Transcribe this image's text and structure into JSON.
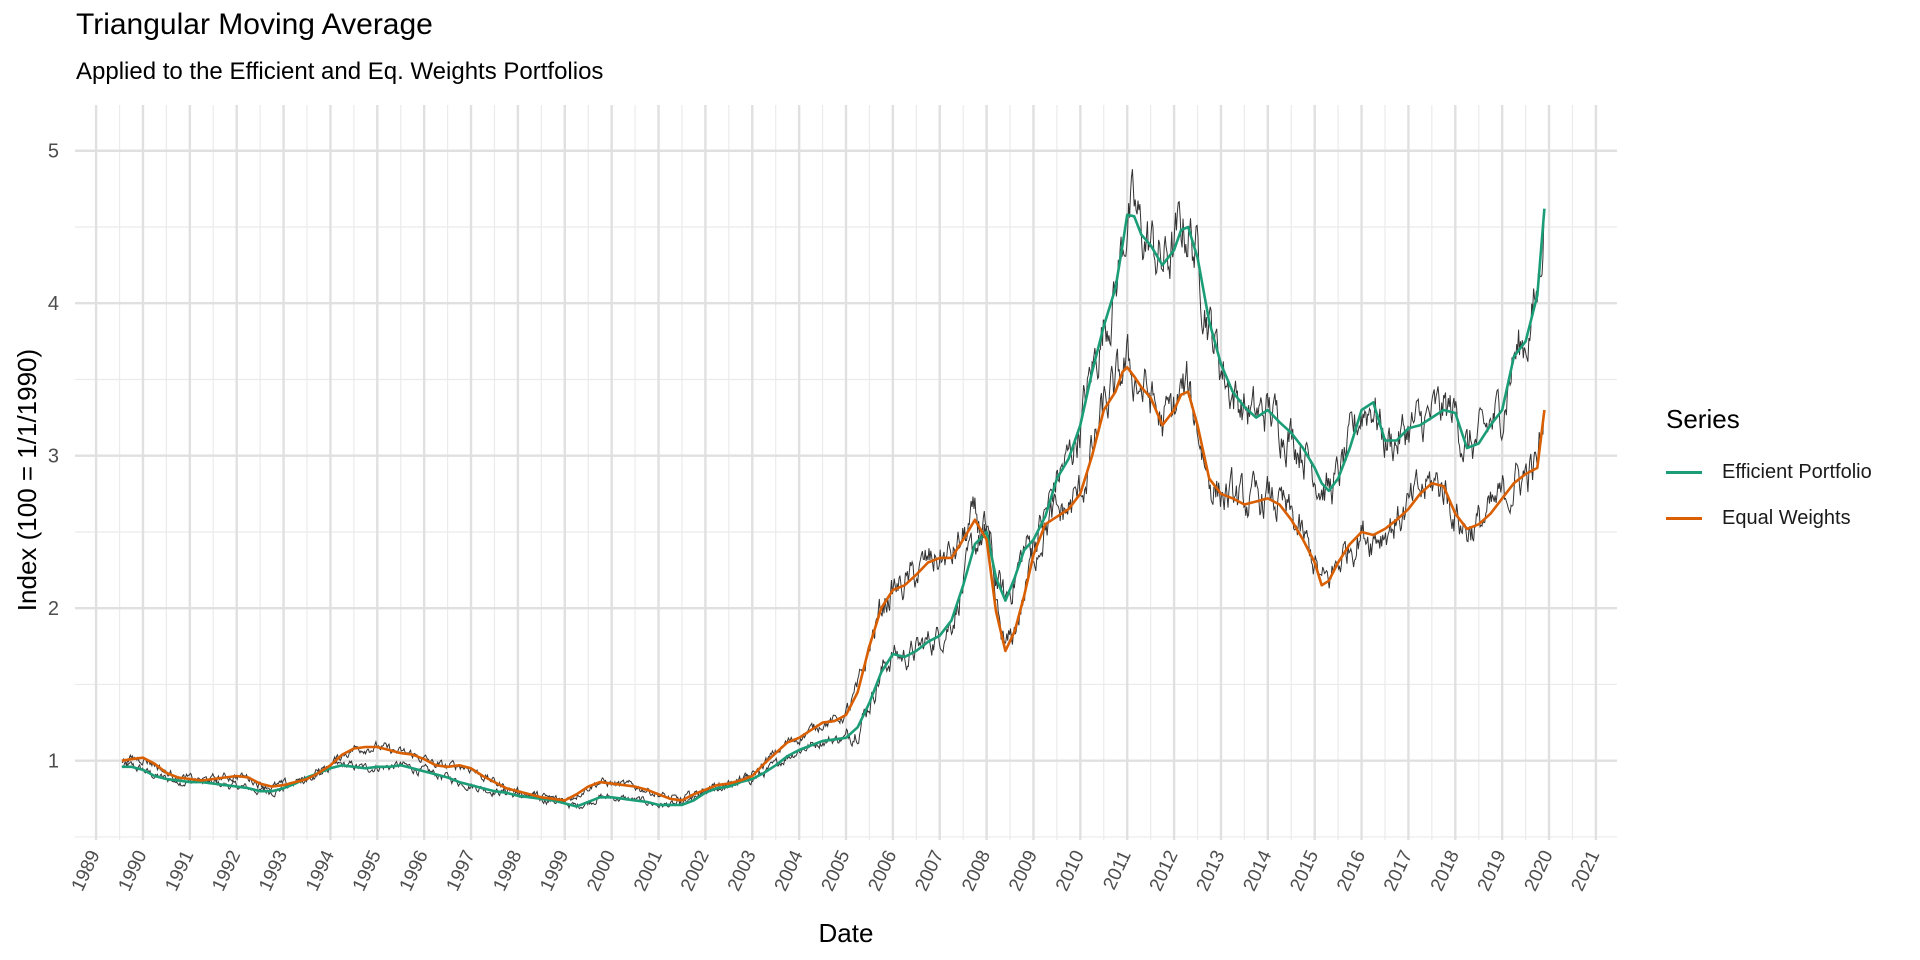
{
  "chart_data": {
    "type": "line",
    "title": "Triangular Moving Average",
    "subtitle": "Applied to the Efficient and Eq. Weights Portfolios",
    "xlabel": "Date",
    "ylabel": "Index (100 = 1/1/1990)",
    "xlim": [
      1988.55,
      2021.45
    ],
    "ylim": [
      0.48,
      5.3
    ],
    "y_ticks": [
      1,
      2,
      3,
      4,
      5
    ],
    "y_tick_labels": [
      "1",
      "2",
      "3",
      "4",
      "5"
    ],
    "x_ticks": [
      1989,
      1990,
      1991,
      1992,
      1993,
      1994,
      1995,
      1996,
      1997,
      1998,
      1999,
      2000,
      2001,
      2002,
      2003,
      2004,
      2005,
      2006,
      2007,
      2008,
      2009,
      2010,
      2011,
      2012,
      2013,
      2014,
      2015,
      2016,
      2017,
      2018,
      2019,
      2020,
      2021
    ],
    "x_tick_labels": [
      "1989",
      "1990",
      "1991",
      "1992",
      "1993",
      "1994",
      "1995",
      "1996",
      "1997",
      "1998",
      "1999",
      "2000",
      "2001",
      "2002",
      "2003",
      "2004",
      "2005",
      "2006",
      "2007",
      "2008",
      "2009",
      "2010",
      "2011",
      "2012",
      "2013",
      "2014",
      "2015",
      "2016",
      "2017",
      "2018",
      "2019",
      "2020",
      "2021"
    ],
    "grid": true,
    "legend": {
      "title": "Series",
      "position": "right",
      "items": [
        {
          "label": "Efficient Portfolio",
          "color": "#1b9e77"
        },
        {
          "label": "Equal Weights",
          "color": "#d95f02"
        }
      ]
    },
    "raw_line_color": "#333333",
    "series": [
      {
        "name": "Efficient Portfolio",
        "color": "#1b9e77",
        "x": [
          1989.55,
          1989.75,
          1990.0,
          1990.25,
          1990.5,
          1990.75,
          1991.0,
          1991.25,
          1991.5,
          1991.75,
          1992.0,
          1992.25,
          1992.5,
          1992.75,
          1993.0,
          1993.25,
          1993.5,
          1993.75,
          1994.0,
          1994.25,
          1994.5,
          1994.75,
          1995.0,
          1995.25,
          1995.5,
          1995.75,
          1996.0,
          1996.25,
          1996.5,
          1996.75,
          1997.0,
          1997.25,
          1997.5,
          1997.75,
          1998.0,
          1998.25,
          1998.5,
          1998.75,
          1999.0,
          1999.25,
          1999.5,
          1999.75,
          2000.0,
          2000.25,
          2000.5,
          2000.75,
          2001.0,
          2001.25,
          2001.5,
          2001.75,
          2002.0,
          2002.25,
          2002.5,
          2002.75,
          2003.0,
          2003.25,
          2003.5,
          2003.75,
          2004.0,
          2004.25,
          2004.5,
          2004.75,
          2005.0,
          2005.25,
          2005.5,
          2005.75,
          2006.0,
          2006.25,
          2006.5,
          2006.75,
          2007.0,
          2007.25,
          2007.5,
          2007.75,
          2008.0,
          2008.2,
          2008.4,
          2008.6,
          2008.8,
          2009.0,
          2009.25,
          2009.5,
          2009.75,
          2010.0,
          2010.25,
          2010.5,
          2010.75,
          2010.9,
          2011.0,
          2011.15,
          2011.3,
          2011.5,
          2011.75,
          2012.0,
          2012.15,
          2012.3,
          2012.5,
          2012.75,
          2013.0,
          2013.25,
          2013.5,
          2013.75,
          2014.0,
          2014.25,
          2014.5,
          2014.75,
          2015.0,
          2015.15,
          2015.3,
          2015.5,
          2015.75,
          2016.0,
          2016.25,
          2016.5,
          2016.75,
          2017.0,
          2017.25,
          2017.5,
          2017.75,
          2018.0,
          2018.25,
          2018.5,
          2018.75,
          2019.0,
          2019.25,
          2019.5,
          2019.75,
          2019.9
        ],
        "values": [
          0.96,
          0.96,
          0.94,
          0.9,
          0.88,
          0.87,
          0.86,
          0.86,
          0.85,
          0.84,
          0.83,
          0.82,
          0.8,
          0.8,
          0.82,
          0.85,
          0.89,
          0.92,
          0.95,
          0.97,
          0.96,
          0.95,
          0.96,
          0.96,
          0.97,
          0.95,
          0.93,
          0.91,
          0.89,
          0.86,
          0.84,
          0.82,
          0.8,
          0.79,
          0.77,
          0.76,
          0.75,
          0.74,
          0.72,
          0.7,
          0.73,
          0.76,
          0.76,
          0.75,
          0.74,
          0.73,
          0.71,
          0.71,
          0.71,
          0.74,
          0.79,
          0.82,
          0.83,
          0.86,
          0.88,
          0.92,
          0.97,
          1.03,
          1.07,
          1.1,
          1.13,
          1.14,
          1.15,
          1.22,
          1.38,
          1.58,
          1.7,
          1.68,
          1.72,
          1.78,
          1.82,
          1.92,
          2.15,
          2.42,
          2.5,
          2.2,
          2.05,
          2.2,
          2.38,
          2.45,
          2.6,
          2.85,
          2.98,
          3.2,
          3.55,
          3.85,
          4.1,
          4.38,
          4.58,
          4.57,
          4.45,
          4.38,
          4.25,
          4.35,
          4.48,
          4.5,
          4.3,
          3.88,
          3.6,
          3.42,
          3.32,
          3.25,
          3.3,
          3.22,
          3.15,
          3.05,
          2.92,
          2.82,
          2.77,
          2.85,
          3.05,
          3.3,
          3.35,
          3.1,
          3.1,
          3.18,
          3.2,
          3.25,
          3.3,
          3.28,
          3.05,
          3.08,
          3.2,
          3.3,
          3.65,
          3.75,
          4.05,
          4.62
        ]
      },
      {
        "name": "Equal Weights",
        "color": "#d95f02",
        "x": [
          1989.55,
          1989.75,
          1990.0,
          1990.25,
          1990.5,
          1990.75,
          1991.0,
          1991.25,
          1991.5,
          1991.75,
          1992.0,
          1992.25,
          1992.5,
          1992.75,
          1993.0,
          1993.25,
          1993.5,
          1993.75,
          1994.0,
          1994.25,
          1994.5,
          1994.75,
          1995.0,
          1995.25,
          1995.5,
          1995.75,
          1996.0,
          1996.25,
          1996.5,
          1996.75,
          1997.0,
          1997.25,
          1997.5,
          1997.75,
          1998.0,
          1998.25,
          1998.5,
          1998.75,
          1999.0,
          1999.25,
          1999.5,
          1999.75,
          2000.0,
          2000.25,
          2000.5,
          2000.75,
          2001.0,
          2001.25,
          2001.5,
          2001.75,
          2002.0,
          2002.25,
          2002.5,
          2002.75,
          2003.0,
          2003.25,
          2003.5,
          2003.75,
          2004.0,
          2004.25,
          2004.5,
          2004.75,
          2005.0,
          2005.25,
          2005.5,
          2005.75,
          2006.0,
          2006.25,
          2006.5,
          2006.75,
          2007.0,
          2007.25,
          2007.5,
          2007.75,
          2008.0,
          2008.2,
          2008.4,
          2008.6,
          2008.8,
          2009.0,
          2009.25,
          2009.5,
          2009.75,
          2010.0,
          2010.25,
          2010.5,
          2010.75,
          2010.9,
          2011.0,
          2011.15,
          2011.3,
          2011.5,
          2011.75,
          2012.0,
          2012.15,
          2012.3,
          2012.5,
          2012.75,
          2013.0,
          2013.25,
          2013.5,
          2013.75,
          2014.0,
          2014.25,
          2014.5,
          2014.75,
          2015.0,
          2015.15,
          2015.3,
          2015.5,
          2015.75,
          2016.0,
          2016.25,
          2016.5,
          2016.75,
          2017.0,
          2017.25,
          2017.5,
          2017.75,
          2018.0,
          2018.25,
          2018.5,
          2018.75,
          2019.0,
          2019.25,
          2019.5,
          2019.75,
          2019.9
        ],
        "values": [
          1.0,
          1.01,
          1.02,
          0.98,
          0.92,
          0.89,
          0.88,
          0.87,
          0.88,
          0.89,
          0.9,
          0.89,
          0.85,
          0.83,
          0.84,
          0.86,
          0.88,
          0.92,
          0.97,
          1.04,
          1.08,
          1.09,
          1.09,
          1.07,
          1.05,
          1.04,
          1.01,
          0.97,
          0.96,
          0.97,
          0.95,
          0.9,
          0.86,
          0.82,
          0.8,
          0.78,
          0.76,
          0.75,
          0.74,
          0.78,
          0.83,
          0.86,
          0.85,
          0.84,
          0.83,
          0.81,
          0.78,
          0.75,
          0.74,
          0.78,
          0.81,
          0.84,
          0.85,
          0.87,
          0.9,
          0.98,
          1.05,
          1.12,
          1.15,
          1.2,
          1.25,
          1.26,
          1.3,
          1.45,
          1.75,
          2.0,
          2.12,
          2.15,
          2.22,
          2.3,
          2.33,
          2.33,
          2.45,
          2.58,
          2.45,
          1.98,
          1.72,
          1.85,
          2.08,
          2.35,
          2.55,
          2.6,
          2.65,
          2.75,
          3.0,
          3.3,
          3.42,
          3.55,
          3.58,
          3.52,
          3.45,
          3.38,
          3.2,
          3.3,
          3.4,
          3.42,
          3.2,
          2.85,
          2.75,
          2.72,
          2.68,
          2.7,
          2.72,
          2.68,
          2.58,
          2.45,
          2.3,
          2.15,
          2.18,
          2.3,
          2.42,
          2.5,
          2.48,
          2.52,
          2.58,
          2.65,
          2.75,
          2.82,
          2.8,
          2.62,
          2.52,
          2.55,
          2.62,
          2.72,
          2.82,
          2.88,
          2.92,
          3.3
        ]
      }
    ]
  }
}
